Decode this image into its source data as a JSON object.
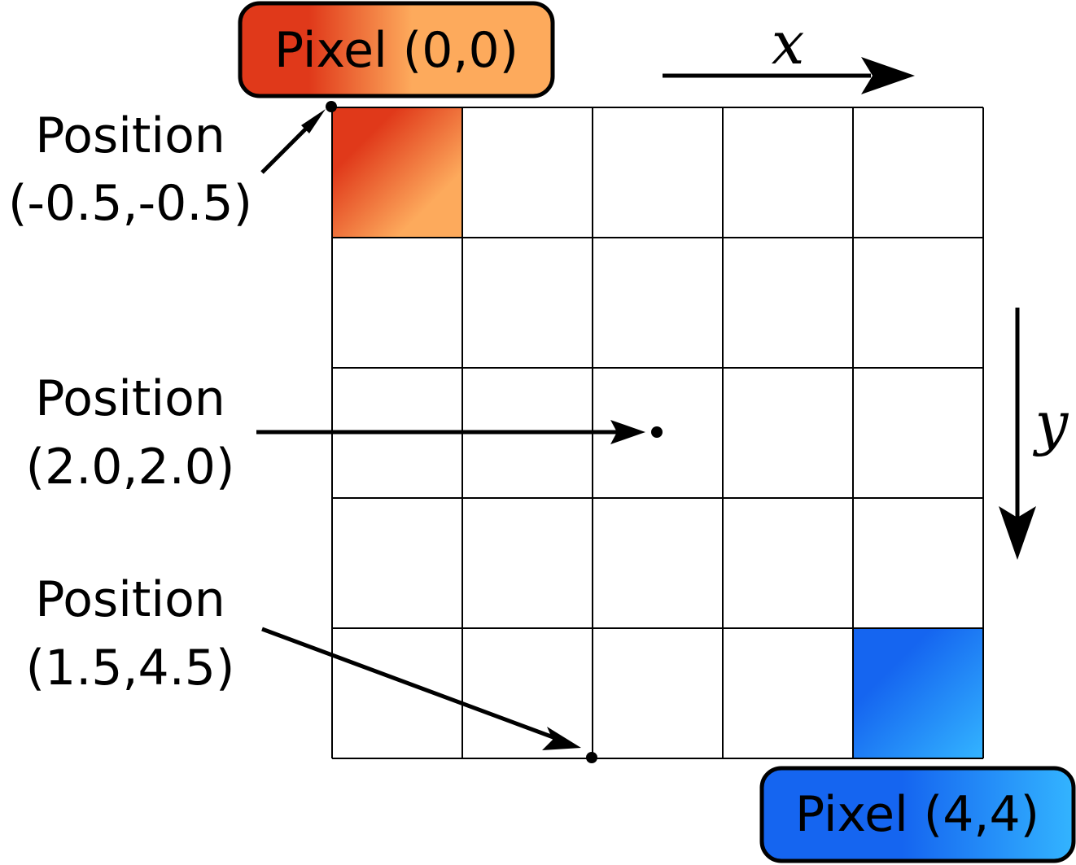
{
  "grid": {
    "columns": 5,
    "rows": 5,
    "highlighted_cells": [
      {
        "col": 0,
        "row": 0,
        "colors": [
          "#e0391a",
          "#fdaa5c"
        ]
      },
      {
        "col": 4,
        "row": 4,
        "colors": [
          "#1565f0",
          "#33b4ff"
        ]
      }
    ],
    "grid_line_color": "#000000"
  },
  "labels": {
    "pixel_origin": "Pixel (0,0)",
    "pixel_end": "Pixel (4,4)",
    "position_corner_line1": "Position",
    "position_corner_line2": "(-0.5,-0.5)",
    "position_center_line1": "Position",
    "position_center_line2": "(2.0,2.0)",
    "position_edge_line1": "Position",
    "position_edge_line2": "(1.5,4.5)"
  },
  "axes": {
    "x_label": "x",
    "y_label": "y"
  },
  "points": [
    {
      "name": "corner-point",
      "x": -0.5,
      "y": -0.5
    },
    {
      "name": "center-point",
      "x": 2.0,
      "y": 2.0
    },
    {
      "name": "edge-point",
      "x": 1.5,
      "y": 4.5
    }
  ],
  "colors": {
    "orange_start": "#e0391a",
    "orange_end": "#fdaa5c",
    "blue_start": "#1565f0",
    "blue_end": "#33b4ff"
  }
}
